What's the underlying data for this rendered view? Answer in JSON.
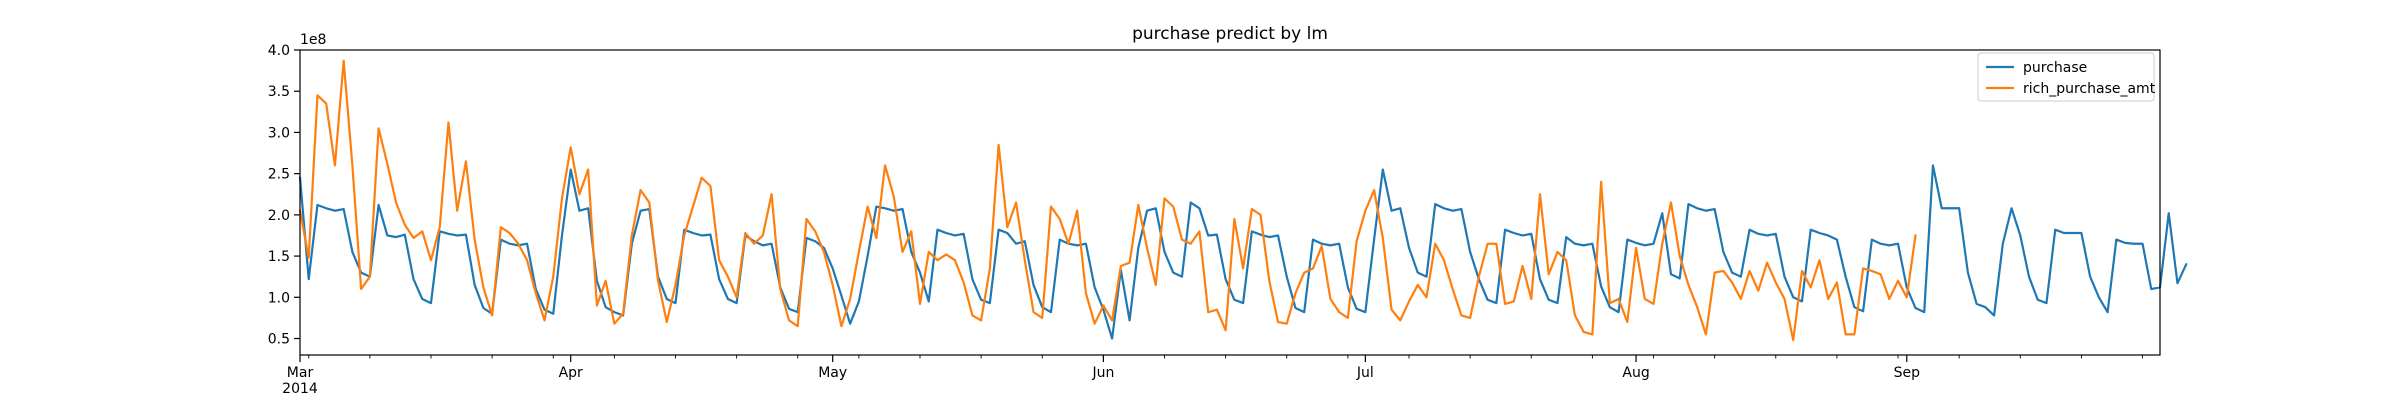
{
  "chart_data": {
    "type": "line",
    "title": "purchase predict by lm",
    "xlabel": "",
    "ylabel": "",
    "y_multiplier_label": "1e8",
    "xlim": [
      "2014-03-01",
      "2014-09-30"
    ],
    "ylim": [
      0.3,
      4.0
    ],
    "y_ticks": [
      0.5,
      1.0,
      1.5,
      2.0,
      2.5,
      3.0,
      3.5,
      4.0
    ],
    "y_tick_labels": [
      "0.5",
      "1.0",
      "1.5",
      "2.0",
      "2.5",
      "3.0",
      "3.5",
      "4.0"
    ],
    "x_ticks": [
      {
        "date": "2014-03-01",
        "label": "Mar",
        "sublabel": "2014"
      },
      {
        "date": "2014-04-01",
        "label": "Apr"
      },
      {
        "date": "2014-05-01",
        "label": "May"
      },
      {
        "date": "2014-06-01",
        "label": "Jun"
      },
      {
        "date": "2014-07-01",
        "label": "Jul"
      },
      {
        "date": "2014-08-01",
        "label": "Aug"
      },
      {
        "date": "2014-09-01",
        "label": "Sep"
      }
    ],
    "grid": false,
    "legend_position": "top-right",
    "series": [
      {
        "name": "purchase",
        "color": "#1f77b4",
        "start_date": "2014-03-01",
        "values": [
          2.45,
          1.22,
          2.12,
          2.08,
          2.05,
          2.07,
          1.55,
          1.3,
          1.25,
          2.12,
          1.75,
          1.73,
          1.76,
          1.22,
          0.98,
          0.93,
          1.8,
          1.77,
          1.75,
          1.76,
          1.15,
          0.87,
          0.8,
          1.7,
          1.65,
          1.63,
          1.65,
          1.1,
          0.85,
          0.8,
          1.75,
          2.55,
          2.05,
          2.08,
          1.2,
          0.88,
          0.82,
          0.78,
          1.65,
          2.05,
          2.07,
          1.25,
          0.98,
          0.93,
          1.82,
          1.78,
          1.75,
          1.76,
          1.22,
          0.98,
          0.93,
          1.75,
          1.68,
          1.63,
          1.65,
          1.12,
          0.86,
          0.82,
          1.72,
          1.68,
          1.6,
          1.35,
          1.02,
          0.68,
          0.95,
          1.5,
          2.1,
          2.08,
          2.05,
          2.07,
          1.55,
          1.3,
          0.95,
          1.82,
          1.78,
          1.75,
          1.77,
          1.22,
          0.97,
          0.93,
          1.82,
          1.78,
          1.65,
          1.68,
          1.15,
          0.88,
          0.82,
          1.7,
          1.65,
          1.63,
          1.65,
          1.12,
          0.85,
          0.5,
          1.33,
          0.72,
          1.6,
          2.05,
          2.08,
          1.55,
          1.3,
          1.25,
          2.15,
          2.08,
          1.75,
          1.76,
          1.22,
          0.97,
          0.93,
          1.8,
          1.76,
          1.73,
          1.75,
          1.25,
          0.87,
          0.82,
          1.7,
          1.65,
          1.63,
          1.65,
          1.12,
          0.86,
          0.82,
          1.7,
          2.55,
          2.05,
          2.08,
          1.6,
          1.3,
          1.25,
          2.13,
          2.08,
          2.05,
          2.07,
          1.55,
          1.22,
          0.97,
          0.93,
          1.82,
          1.78,
          1.75,
          1.77,
          1.22,
          0.97,
          0.93,
          1.73,
          1.65,
          1.63,
          1.65,
          1.13,
          0.88,
          0.82,
          1.7,
          1.66,
          1.63,
          1.65,
          2.02,
          1.28,
          1.23,
          2.13,
          2.08,
          2.05,
          2.07,
          1.55,
          1.3,
          1.25,
          1.82,
          1.77,
          1.75,
          1.77,
          1.25,
          1.0,
          0.95,
          1.82,
          1.78,
          1.75,
          1.7,
          1.25,
          0.88,
          0.83,
          1.7,
          1.65,
          1.63,
          1.65,
          1.12,
          0.87,
          0.82,
          2.6,
          2.08,
          2.08,
          2.08,
          1.3,
          0.92,
          0.88,
          0.78,
          1.65,
          2.08,
          1.75,
          1.25,
          0.97,
          0.93,
          1.82,
          1.78,
          1.78,
          1.78,
          1.25,
          1.0,
          0.82,
          1.7,
          1.66,
          1.65,
          1.65,
          1.1,
          1.12,
          2.02,
          1.17,
          1.4
        ]
      },
      {
        "name": "rich_purchase_amt",
        "color": "#ff7f0e",
        "start_date": "2014-03-01",
        "values": [
          2.05,
          1.48,
          3.45,
          3.35,
          2.6,
          3.87,
          2.6,
          1.1,
          1.25,
          3.05,
          2.62,
          2.15,
          1.88,
          1.72,
          1.8,
          1.45,
          1.85,
          3.12,
          2.05,
          2.65,
          1.7,
          1.12,
          0.78,
          1.85,
          1.78,
          1.65,
          1.45,
          1.05,
          0.72,
          1.25,
          2.2,
          2.82,
          2.25,
          2.55,
          0.9,
          1.2,
          0.68,
          0.8,
          1.75,
          2.3,
          2.15,
          1.2,
          0.7,
          1.15,
          1.75,
          2.1,
          2.45,
          2.35,
          1.45,
          1.25,
          1.0,
          1.78,
          1.65,
          1.75,
          2.25,
          1.1,
          0.72,
          0.65,
          1.95,
          1.8,
          1.55,
          1.15,
          0.65,
          0.98,
          1.55,
          2.1,
          1.72,
          2.6,
          2.22,
          1.55,
          1.8,
          0.92,
          1.55,
          1.45,
          1.52,
          1.45,
          1.18,
          0.78,
          0.72,
          1.35,
          2.85,
          1.85,
          2.15,
          1.45,
          0.82,
          0.75,
          2.1,
          1.95,
          1.65,
          2.05,
          1.05,
          0.68,
          0.9,
          0.72,
          1.38,
          1.42,
          2.12,
          1.6,
          1.15,
          2.2,
          2.1,
          1.7,
          1.65,
          1.8,
          0.82,
          0.85,
          0.6,
          1.95,
          1.35,
          2.07,
          2.0,
          1.2,
          0.7,
          0.68,
          1.05,
          1.3,
          1.35,
          1.62,
          0.98,
          0.82,
          0.75,
          1.68,
          2.05,
          2.3,
          1.72,
          0.85,
          0.72,
          0.95,
          1.15,
          1.0,
          1.65,
          1.45,
          1.1,
          0.78,
          0.75,
          1.25,
          1.65,
          1.65,
          0.92,
          0.95,
          1.38,
          0.98,
          2.25,
          1.28,
          1.55,
          1.45,
          0.78,
          0.58,
          0.55,
          2.4,
          0.93,
          0.98,
          0.7,
          1.6,
          0.98,
          0.92,
          1.65,
          2.15,
          1.5,
          1.15,
          0.88,
          0.55,
          1.3,
          1.32,
          1.18,
          0.98,
          1.32,
          1.08,
          1.42,
          1.18,
          0.98,
          0.48,
          1.32,
          1.12,
          1.45,
          0.98,
          1.18,
          0.55,
          0.55,
          1.35,
          1.32,
          1.28,
          0.98,
          1.2,
          1.0,
          1.75
        ]
      }
    ]
  }
}
